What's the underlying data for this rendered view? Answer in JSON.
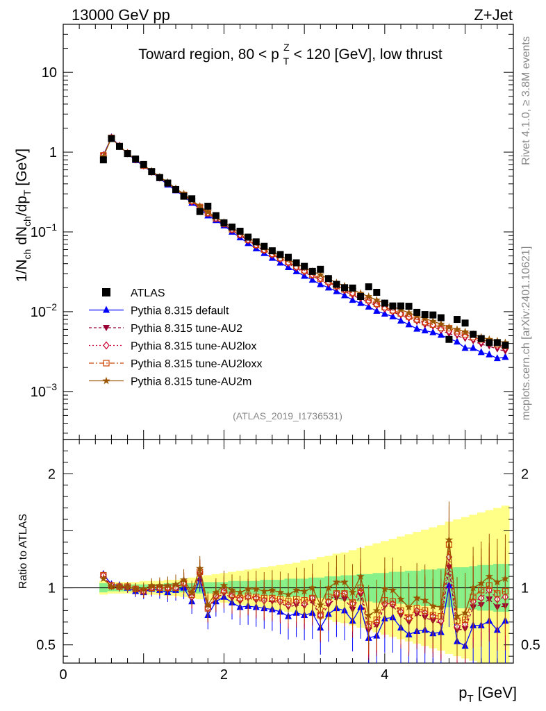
{
  "header": {
    "left": "13000 GeV pp",
    "right": "Z+Jet"
  },
  "plot_title": "Toward region, 80 < p_T^Z < 120 [GeV], low thrust",
  "analysis_id": "(ATLAS_2019_I1736531)",
  "side_text": {
    "rivet": "Rivet 4.1.0, ≥ 3.8M events",
    "mcplots": "mcplots.cern.ch [arXiv:2401.10621]"
  },
  "colors": {
    "data": "#000000",
    "default": "#0000ff",
    "AU2": "#990033",
    "AU2lox": "#cc0033",
    "AU2loxx": "#cc4400",
    "AU2m": "#995500",
    "band_stat": "#88f088",
    "band_total": "#ffff88"
  },
  "chart_data": [
    {
      "type": "scatter",
      "name": "main",
      "ylabel": "1/N_ch dN_ch/dp_T [GeV]",
      "yscale": "log",
      "xlim": [
        0,
        5.6
      ],
      "ylim": [
        0.00025,
        40
      ],
      "ytick_labels": [
        "10^-3",
        "10^-2",
        "10^-1",
        "1",
        "10"
      ],
      "legend": [
        "ATLAS",
        "Pythia 8.315 default",
        "Pythia 8.315 tune-AU2",
        "Pythia 8.315 tune-AU2lox",
        "Pythia 8.315 tune-AU2loxx",
        "Pythia 8.315 tune-AU2m"
      ],
      "legend_position": "lower-left",
      "x": [
        0.5,
        0.6,
        0.7,
        0.8,
        0.9,
        1.0,
        1.1,
        1.2,
        1.3,
        1.4,
        1.5,
        1.6,
        1.7,
        1.8,
        1.9,
        2.0,
        2.1,
        2.2,
        2.3,
        2.4,
        2.5,
        2.6,
        2.7,
        2.8,
        2.9,
        3.0,
        3.1,
        3.2,
        3.3,
        3.4,
        3.5,
        3.6,
        3.7,
        3.8,
        3.9,
        4.0,
        4.1,
        4.2,
        4.3,
        4.4,
        4.5,
        4.6,
        4.7,
        4.8,
        4.9,
        5.0,
        5.1,
        5.2,
        5.3,
        5.4,
        5.5
      ],
      "atlas": [
        0.8,
        1.48,
        1.18,
        0.96,
        0.82,
        0.7,
        0.57,
        0.48,
        0.41,
        0.34,
        0.28,
        0.26,
        0.18,
        0.21,
        0.16,
        0.13,
        0.115,
        0.102,
        0.086,
        0.075,
        0.066,
        0.058,
        0.052,
        0.048,
        0.041,
        0.037,
        0.032,
        0.034,
        0.026,
        0.022,
        0.02,
        0.0198,
        0.0155,
        0.0205,
        0.0175,
        0.0128,
        0.0118,
        0.0118,
        0.0117,
        0.0098,
        0.0092,
        0.0091,
        0.0084,
        0.0045,
        0.008,
        0.0072,
        0.0052,
        0.0046,
        0.0041,
        0.0041,
        0.0038
      ],
      "series": [
        {
          "name": "Pythia 8.315 default",
          "values": [
            0.92,
            1.53,
            1.2,
            0.96,
            0.79,
            0.67,
            0.56,
            0.47,
            0.39,
            0.33,
            0.28,
            0.23,
            0.195,
            0.16,
            0.14,
            0.12,
            0.1,
            0.085,
            0.072,
            0.062,
            0.054,
            0.047,
            0.041,
            0.036,
            0.032,
            0.028,
            0.025,
            0.022,
            0.02,
            0.018,
            0.016,
            0.014,
            0.0128,
            0.0115,
            0.0102,
            0.0094,
            0.0087,
            0.0077,
            0.0069,
            0.0061,
            0.0058,
            0.0055,
            0.0051,
            0.0046,
            0.0042,
            0.0035,
            0.0035,
            0.0031,
            0.0029,
            0.0026,
            0.0027
          ]
        },
        {
          "name": "Pythia 8.315 tune-AU2",
          "values": [
            0.9,
            1.5,
            1.18,
            0.96,
            0.8,
            0.68,
            0.57,
            0.48,
            0.4,
            0.34,
            0.29,
            0.24,
            0.2,
            0.17,
            0.145,
            0.124,
            0.105,
            0.09,
            0.078,
            0.067,
            0.058,
            0.051,
            0.045,
            0.04,
            0.035,
            0.031,
            0.028,
            0.025,
            0.022,
            0.02,
            0.018,
            0.016,
            0.0145,
            0.013,
            0.0118,
            0.0108,
            0.0099,
            0.009,
            0.0082,
            0.0075,
            0.0068,
            0.0065,
            0.0058,
            0.0053,
            0.005,
            0.0046,
            0.0043,
            0.0039,
            0.0037,
            0.0034,
            0.0032
          ]
        },
        {
          "name": "Pythia 8.315 tune-AU2lox",
          "values": [
            0.91,
            1.51,
            1.19,
            0.97,
            0.81,
            0.68,
            0.57,
            0.48,
            0.41,
            0.34,
            0.29,
            0.24,
            0.205,
            0.172,
            0.148,
            0.126,
            0.107,
            0.092,
            0.079,
            0.068,
            0.059,
            0.052,
            0.046,
            0.041,
            0.036,
            0.032,
            0.029,
            0.026,
            0.023,
            0.021,
            0.019,
            0.017,
            0.015,
            0.0135,
            0.0122,
            0.011,
            0.0101,
            0.0093,
            0.0085,
            0.0078,
            0.0072,
            0.0068,
            0.006,
            0.0057,
            0.0053,
            0.0049,
            0.0046,
            0.0042,
            0.004,
            0.0037,
            0.0035
          ]
        },
        {
          "name": "Pythia 8.315 tune-AU2loxx",
          "values": [
            0.91,
            1.51,
            1.19,
            0.97,
            0.81,
            0.68,
            0.57,
            0.48,
            0.41,
            0.34,
            0.29,
            0.245,
            0.205,
            0.172,
            0.148,
            0.127,
            0.108,
            0.093,
            0.08,
            0.069,
            0.06,
            0.053,
            0.047,
            0.042,
            0.037,
            0.033,
            0.029,
            0.026,
            0.024,
            0.021,
            0.019,
            0.0172,
            0.0155,
            0.014,
            0.0126,
            0.0114,
            0.0104,
            0.0095,
            0.0087,
            0.008,
            0.0074,
            0.0069,
            0.0063,
            0.0062,
            0.0057,
            0.0052,
            0.0048,
            0.0045,
            0.0042,
            0.0039,
            0.0037
          ]
        },
        {
          "name": "Pythia 8.315 tune-AU2m",
          "values": [
            0.88,
            1.5,
            1.19,
            0.97,
            0.81,
            0.69,
            0.58,
            0.49,
            0.42,
            0.35,
            0.3,
            0.25,
            0.21,
            0.178,
            0.153,
            0.132,
            0.113,
            0.098,
            0.085,
            0.074,
            0.064,
            0.057,
            0.05,
            0.045,
            0.04,
            0.036,
            0.032,
            0.029,
            0.026,
            0.023,
            0.021,
            0.019,
            0.017,
            0.0155,
            0.014,
            0.0127,
            0.0116,
            0.0106,
            0.0097,
            0.0089,
            0.0082,
            0.0076,
            0.007,
            0.0064,
            0.006,
            0.0056,
            0.0052,
            0.0048,
            0.0045,
            0.0043,
            0.0041
          ]
        }
      ]
    },
    {
      "type": "scatter",
      "name": "ratio",
      "ylabel": "Ratio to ATLAS",
      "xlabel": "p_T [GeV]",
      "xlim": [
        0,
        5.6
      ],
      "ylim": [
        0.34,
        2.3
      ],
      "xtick_labels": [
        "0",
        "2",
        "4"
      ],
      "ytick_labels": [
        "0.5",
        "1",
        "2"
      ],
      "reference_line": 1,
      "stat_band": [
        0.04,
        0.03,
        0.03,
        0.03,
        0.03,
        0.03,
        0.03,
        0.03,
        0.04,
        0.04,
        0.04,
        0.04,
        0.05,
        0.05,
        0.05,
        0.05,
        0.06,
        0.06,
        0.06,
        0.06,
        0.07,
        0.07,
        0.07,
        0.08,
        0.08,
        0.08,
        0.09,
        0.09,
        0.1,
        0.1,
        0.11,
        0.11,
        0.12,
        0.12,
        0.13,
        0.13,
        0.14,
        0.14,
        0.15,
        0.15,
        0.16,
        0.16,
        0.17,
        0.17,
        0.18,
        0.18,
        0.19,
        0.2,
        0.2,
        0.21,
        0.21
      ],
      "total_band": [
        0.06,
        0.05,
        0.05,
        0.05,
        0.05,
        0.06,
        0.06,
        0.06,
        0.07,
        0.07,
        0.08,
        0.09,
        0.1,
        0.11,
        0.12,
        0.13,
        0.14,
        0.15,
        0.16,
        0.17,
        0.18,
        0.19,
        0.2,
        0.21,
        0.22,
        0.24,
        0.25,
        0.27,
        0.28,
        0.3,
        0.31,
        0.33,
        0.35,
        0.37,
        0.39,
        0.41,
        0.43,
        0.45,
        0.47,
        0.49,
        0.51,
        0.53,
        0.55,
        0.58,
        0.6,
        0.62,
        0.64,
        0.66,
        0.68,
        0.7,
        0.72
      ],
      "series": [
        {
          "name": "Pythia 8.315 default",
          "values": [
            1.12,
            1.03,
            1.02,
            1.0,
            0.97,
            0.96,
            0.99,
            0.98,
            0.96,
            0.98,
            1.0,
            0.88,
            1.08,
            0.76,
            0.88,
            0.92,
            0.87,
            0.83,
            0.84,
            0.83,
            0.82,
            0.81,
            0.79,
            0.75,
            0.78,
            0.76,
            0.78,
            0.65,
            0.77,
            0.82,
            0.8,
            0.71,
            0.83,
            0.56,
            0.58,
            0.73,
            0.74,
            0.65,
            0.59,
            0.62,
            0.63,
            0.6,
            0.61,
            1.02,
            0.53,
            0.49,
            0.67,
            0.67,
            0.71,
            0.63,
            0.71
          ]
        },
        {
          "name": "Pythia 8.315 tune-AU2",
          "values": [
            1.1,
            1.01,
            1.0,
            1.0,
            0.98,
            0.97,
            1.0,
            1.0,
            0.98,
            1.0,
            1.04,
            0.92,
            1.11,
            0.81,
            0.91,
            0.95,
            0.91,
            0.88,
            0.91,
            0.89,
            0.88,
            0.88,
            0.87,
            0.83,
            0.85,
            0.84,
            0.88,
            0.74,
            0.85,
            0.91,
            0.9,
            0.81,
            0.94,
            0.63,
            0.67,
            0.84,
            0.84,
            0.76,
            0.7,
            0.77,
            0.74,
            0.71,
            0.69,
            1.18,
            0.63,
            0.64,
            0.83,
            0.85,
            0.9,
            0.83,
            0.84
          ]
        },
        {
          "name": "Pythia 8.315 tune-AU2lox",
          "values": [
            1.11,
            1.02,
            1.01,
            1.01,
            0.99,
            0.97,
            1.0,
            1.0,
            1.0,
            1.0,
            1.04,
            0.92,
            1.14,
            0.82,
            0.93,
            0.97,
            0.93,
            0.9,
            0.92,
            0.91,
            0.89,
            0.9,
            0.88,
            0.85,
            0.88,
            0.86,
            0.91,
            0.76,
            0.88,
            0.95,
            0.95,
            0.86,
            0.97,
            0.66,
            0.7,
            0.86,
            0.86,
            0.79,
            0.73,
            0.8,
            0.78,
            0.75,
            0.71,
            1.27,
            0.66,
            0.68,
            0.88,
            0.91,
            0.98,
            0.9,
            0.92
          ]
        },
        {
          "name": "Pythia 8.315 tune-AU2loxx",
          "values": [
            1.11,
            1.02,
            1.01,
            1.01,
            0.99,
            0.97,
            1.0,
            1.0,
            1.0,
            1.0,
            1.04,
            0.94,
            1.14,
            0.82,
            0.93,
            0.98,
            0.94,
            0.91,
            0.93,
            0.92,
            0.91,
            0.91,
            0.9,
            0.88,
            0.9,
            0.89,
            0.91,
            0.76,
            0.92,
            0.95,
            0.95,
            0.87,
            1.0,
            0.68,
            0.72,
            0.89,
            0.88,
            0.8,
            0.74,
            0.82,
            0.8,
            0.76,
            0.75,
            1.38,
            0.71,
            0.72,
            0.92,
            0.98,
            1.02,
            0.95,
            0.97
          ]
        },
        {
          "name": "Pythia 8.315 tune-AU2m",
          "values": [
            1.08,
            1.01,
            1.01,
            1.01,
            0.99,
            0.99,
            1.02,
            1.02,
            1.02,
            1.03,
            1.07,
            0.96,
            1.17,
            0.85,
            0.96,
            1.02,
            0.98,
            0.96,
            0.99,
            0.99,
            0.97,
            0.98,
            0.96,
            0.94,
            0.98,
            0.97,
            1.0,
            0.85,
            1.0,
            1.05,
            1.05,
            0.96,
            1.1,
            0.76,
            0.8,
            0.99,
            0.98,
            0.9,
            0.83,
            0.91,
            0.89,
            0.84,
            0.83,
            1.42,
            0.75,
            0.78,
            1.0,
            1.04,
            1.1,
            1.05,
            1.08
          ]
        }
      ]
    }
  ]
}
